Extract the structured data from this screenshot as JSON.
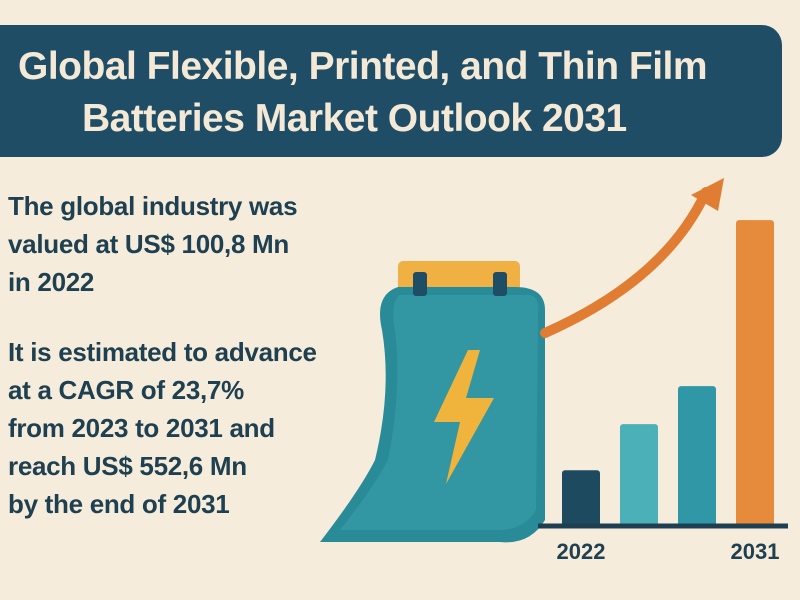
{
  "header": {
    "title_line1": "Global Flexible, Printed, and Thin Film",
    "title_line2": "Batteries Market Outlook 2031"
  },
  "stats": {
    "valuation_lines": [
      "The global industry was",
      "valued at US$ 100,8 Mn",
      "in 2022"
    ],
    "forecast_lines": [
      "It is estimated to advance",
      "at a CAGR of 23,7%",
      "from 2023 to 2031 and",
      "reach US$ 552,6 Mn",
      "by the end of 2031"
    ]
  },
  "icons": {
    "battery": "flexible-battery-icon",
    "bolt": "lightning-bolt-icon",
    "arrow": "trend-up-arrow-icon"
  },
  "colors": {
    "background": "#f6ecdc",
    "banner": "#1f4d66",
    "text": "#1f4050",
    "bar_series": [
      "#1e4a60",
      "#4cb0b8",
      "#2f97a6",
      "#e68a3c"
    ],
    "arrow": "#e07d33",
    "battery_body": "#2a8b98",
    "bolt": "#f0b43c"
  },
  "chart_data": {
    "type": "bar",
    "categories": [
      "2022",
      "",
      "",
      "2031"
    ],
    "values": [
      100.8,
      184,
      252.6,
      552.6
    ],
    "ylim": [
      0,
      560
    ],
    "grid": false,
    "axis_labels_shown": [
      "2022",
      "2031"
    ]
  }
}
